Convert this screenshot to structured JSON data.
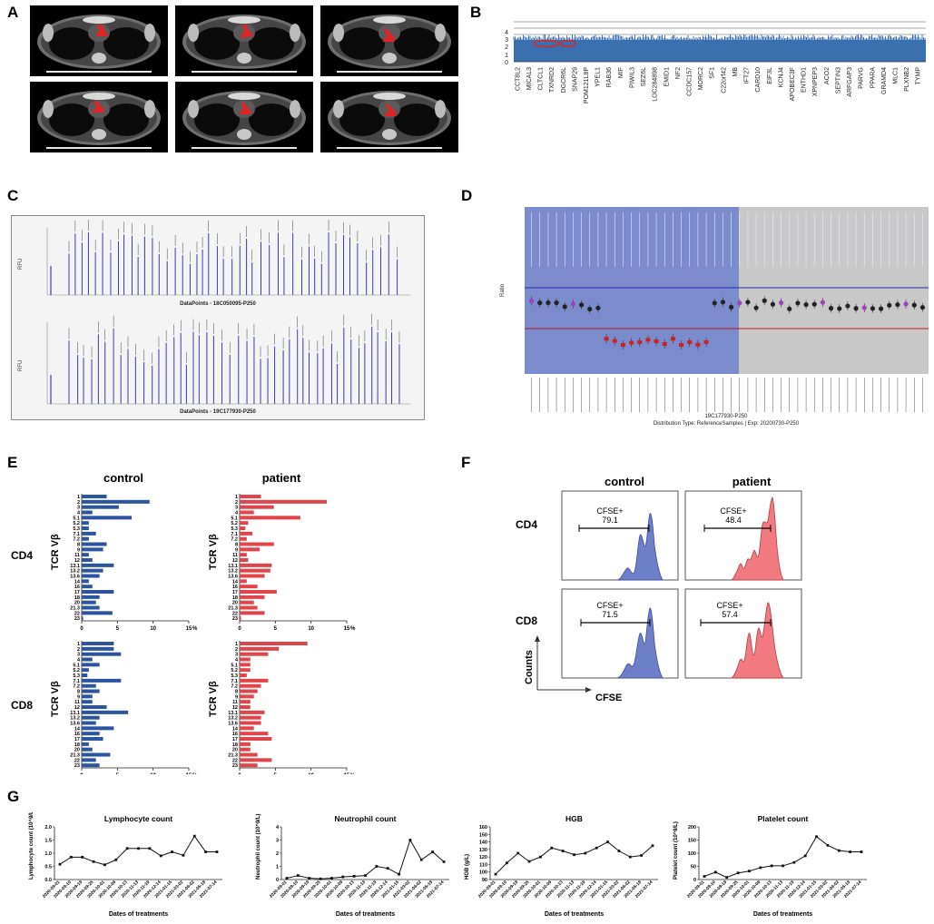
{
  "panels": {
    "a": "A",
    "b": "B",
    "c": "C",
    "d": "D",
    "e": "E",
    "f": "F",
    "g": "G"
  },
  "panel_b": {
    "y_ticks": [
      "0",
      "1",
      "2",
      "3",
      "4"
    ],
    "genes": [
      "CCT8L2",
      "MICAL3",
      "CLTCL1",
      "TXNRD2",
      "DGCR6L",
      "SNAP29",
      "POM121L8P",
      "YPEL1",
      "RAB36",
      "MIF",
      "PIWIL3",
      "SEZ6L",
      "LOC284898",
      "EMID1",
      "NF2",
      "CCDC157",
      "MORC2",
      "SF1",
      "C22orf42",
      "MB",
      "IFT27",
      "CARD10",
      "EIF3L",
      "KCNJ4",
      "APOBEC3F",
      "ENTHD1",
      "XPNPEP3",
      "ACO2",
      "SEPTIN3",
      "ARFGAP3",
      "PARVG",
      "PPARA",
      "GRAMD4",
      "MLC1",
      "PLXNB2",
      "TYMP"
    ]
  },
  "panel_c": {
    "y_label": "RFU",
    "top_caption": "DataPoints - 18C050095-P250",
    "bottom_caption": "DataPoints - 19C177930-P250"
  },
  "panel_d": {
    "y_label": "Ratio",
    "caption_line1": "19C177930-P250",
    "caption_line2": "Distribution Type: ReferenceSamples | Exp: 20200730-P250"
  },
  "panel_e": {
    "col_control": "control",
    "col_patient": "patient",
    "row_cd4": "CD4",
    "row_cd8": "CD8",
    "y_axis_label": "TCR Vβ",
    "x_ticks": [
      "0",
      "5",
      "10",
      "15"
    ],
    "x_unit": "%"
  },
  "panel_f": {
    "col_control": "control",
    "col_patient": "patient",
    "row_cd4": "CD4",
    "row_cd8": "CD8",
    "gate_label": "CFSE+",
    "y_axis_label": "Counts",
    "x_axis_label": "CFSE",
    "values": {
      "cd4_control": "79.1",
      "cd4_patient": "48.4",
      "cd8_control": "71.5",
      "cd8_patient": "57.4"
    }
  },
  "chart_data": [
    {
      "type": "bar",
      "id": "e_cd4_control",
      "title": "CD4 control",
      "orientation": "horizontal",
      "ylabel": "TCR Vβ",
      "xlim": [
        0,
        15
      ],
      "categories": [
        "1",
        "2",
        "3",
        "4",
        "5.1",
        "5.2",
        "5.3",
        "7.1",
        "7.2",
        "8",
        "9",
        "11",
        "12",
        "13.1",
        "13.2",
        "13.6",
        "14",
        "16",
        "17",
        "18",
        "20",
        "21.3",
        "22",
        "23"
      ],
      "values": [
        3.5,
        9.5,
        5.2,
        1.5,
        7.0,
        1.0,
        1.0,
        2.0,
        1.0,
        3.5,
        3.0,
        1.0,
        1.5,
        4.5,
        3.0,
        2.5,
        1.0,
        1.5,
        4.5,
        2.5,
        2.0,
        2.5,
        4.3,
        0.2
      ]
    },
    {
      "type": "bar",
      "id": "e_cd4_patient",
      "title": "CD4 patient",
      "orientation": "horizontal",
      "ylabel": "TCR Vβ",
      "xlim": [
        0,
        15
      ],
      "categories": [
        "1",
        "2",
        "3",
        "4",
        "5.1",
        "5.2",
        "5.3",
        "7.1",
        "7.2",
        "8",
        "9",
        "11",
        "12",
        "13.1",
        "13.2",
        "13.6",
        "14",
        "16",
        "17",
        "18",
        "20",
        "21.3",
        "22",
        "23"
      ],
      "values": [
        3.0,
        12.2,
        4.8,
        2.0,
        8.5,
        1.2,
        0.8,
        1.8,
        1.0,
        4.8,
        2.8,
        1.0,
        1.2,
        4.5,
        4.3,
        3.5,
        1.0,
        2.5,
        5.2,
        3.5,
        2.0,
        2.5,
        3.5,
        0.2
      ]
    },
    {
      "type": "bar",
      "id": "e_cd8_control",
      "title": "CD8 control",
      "orientation": "horizontal",
      "ylabel": "TCR Vβ",
      "xlim": [
        0,
        15
      ],
      "categories": [
        "1",
        "2",
        "3",
        "4",
        "5.1",
        "5.2",
        "5.3",
        "7.1",
        "7.2",
        "8",
        "9",
        "11",
        "12",
        "13.1",
        "13.2",
        "13.6",
        "14",
        "16",
        "17",
        "18",
        "20",
        "21.3",
        "22",
        "23"
      ],
      "values": [
        4.5,
        4.5,
        5.5,
        1.5,
        2.5,
        1.0,
        0.8,
        5.5,
        2.0,
        2.5,
        1.5,
        1.5,
        3.5,
        6.5,
        2.5,
        2.0,
        4.5,
        2.5,
        3.0,
        1.0,
        1.5,
        4.0,
        2.0,
        2.5
      ]
    },
    {
      "type": "bar",
      "id": "e_cd8_patient",
      "title": "CD8 patient",
      "orientation": "horizontal",
      "ylabel": "TCR Vβ",
      "xlim": [
        0,
        15
      ],
      "categories": [
        "1",
        "2",
        "3",
        "4",
        "5.1",
        "5.2",
        "5.3",
        "7.1",
        "7.2",
        "8",
        "9",
        "11",
        "12",
        "13.1",
        "13.2",
        "13.6",
        "14",
        "16",
        "17",
        "18",
        "20",
        "21.3",
        "22",
        "23"
      ],
      "values": [
        9.5,
        5.5,
        4.0,
        1.5,
        1.5,
        1.5,
        1.0,
        4.0,
        3.0,
        2.5,
        2.0,
        1.5,
        1.5,
        3.5,
        3.0,
        3.0,
        2.0,
        4.0,
        4.5,
        1.5,
        1.5,
        2.5,
        4.5,
        2.5
      ]
    },
    {
      "type": "line",
      "id": "g_lymphocyte",
      "title": "Lymphocyte count",
      "xlabel": "Dates of treatments",
      "ylabel": "Lymphocyte count (10^9/L)",
      "ylim": [
        0,
        2
      ],
      "yticks": [
        "0.0",
        "0.5",
        "1.0",
        "1.5",
        "2.0"
      ],
      "x": [
        "2020-09-01",
        "2020-09-10",
        "2020-09-19",
        "2020-09-25",
        "2020-10-01",
        "2020-10-09",
        "2020-10-13",
        "2020-11-13",
        "2020-11-19",
        "2020-12-14",
        "2021-01-15",
        "2021-03-02",
        "2021-04-02",
        "2021-05-19",
        "2021-07-14"
      ],
      "values": [
        0.58,
        0.85,
        0.85,
        0.68,
        0.56,
        0.75,
        1.18,
        1.18,
        1.18,
        0.9,
        1.05,
        0.92,
        1.65,
        1.05,
        1.05
      ]
    },
    {
      "type": "line",
      "id": "g_neutrophil",
      "title": "Neutrophil count",
      "xlabel": "Dates of treatments",
      "ylabel": "Neutrophil count (10^9/L)",
      "ylim": [
        0,
        4
      ],
      "yticks": [
        "0",
        "1",
        "2",
        "3",
        "4"
      ],
      "x": [
        "2020-09-01",
        "2020-09-10",
        "2020-09-19",
        "2020-09-25",
        "2020-10-01",
        "2020-10-09",
        "2020-10-13",
        "2020-11-13",
        "2020-11-19",
        "2020-12-14",
        "2021-01-15",
        "2021-03-02",
        "2021-04-02",
        "2021-05-19",
        "2021-07-14"
      ],
      "values": [
        0.1,
        0.3,
        0.1,
        0.05,
        0.1,
        0.2,
        0.25,
        0.3,
        1.0,
        0.85,
        0.4,
        3.0,
        1.5,
        2.1,
        1.35
      ]
    },
    {
      "type": "line",
      "id": "g_hgb",
      "title": "HGB",
      "xlabel": "Dates of treatments",
      "ylabel": "HGB (g/L)",
      "ylim": [
        90,
        160
      ],
      "yticks": [
        "90",
        "100",
        "110",
        "120",
        "130",
        "140",
        "150",
        "160"
      ],
      "x": [
        "2020-09-01",
        "2020-09-10",
        "2020-09-19",
        "2020-09-25",
        "2020-10-01",
        "2020-10-09",
        "2020-10-13",
        "2020-11-13",
        "2020-11-19",
        "2020-12-14",
        "2021-01-15",
        "2021-03-02",
        "2021-04-02",
        "2021-05-19",
        "2021-07-14"
      ],
      "values": [
        97,
        112,
        125,
        114,
        120,
        132,
        128,
        123,
        125,
        132,
        140,
        128,
        120,
        122,
        135
      ]
    },
    {
      "type": "line",
      "id": "g_platelet",
      "title": "Platelet count",
      "xlabel": "Dates of treatments",
      "ylabel": "Platelet count (10^9/L)",
      "ylim": [
        0,
        200
      ],
      "yticks": [
        "0",
        "50",
        "100",
        "150",
        "200"
      ],
      "x": [
        "2020-09-01",
        "2020-09-10",
        "2020-09-19",
        "2020-09-25",
        "2020-10-01",
        "2020-10-09",
        "2020-10-13",
        "2020-11-13",
        "2020-11-19",
        "2020-12-14",
        "2021-01-15",
        "2021-03-02",
        "2021-04-02",
        "2021-05-19",
        "2021-07-14"
      ],
      "values": [
        12,
        28,
        8,
        25,
        32,
        45,
        52,
        52,
        65,
        90,
        163,
        130,
        110,
        105,
        105
      ]
    }
  ]
}
